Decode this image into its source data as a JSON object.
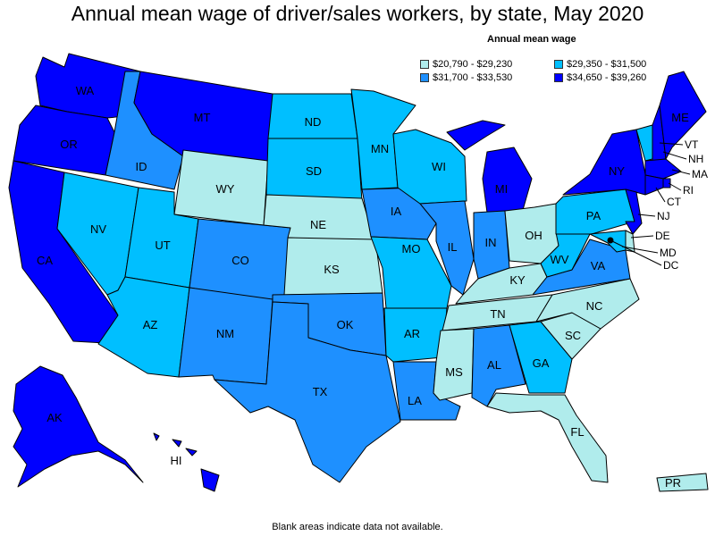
{
  "title": "Annual mean wage of driver/sales workers, by state, May 2020",
  "legend": {
    "title": "Annual mean wage",
    "items": [
      {
        "label": "$20,790 - $29,230",
        "color": "#b0ecec"
      },
      {
        "label": "$29,350 - $31,500",
        "color": "#00bfff"
      },
      {
        "label": "$31,700 - $33,530",
        "color": "#1e90ff"
      },
      {
        "label": "$34,650 - $39,260",
        "color": "#0000ff"
      }
    ]
  },
  "footnote": "Blank areas indicate data not available.",
  "states": {
    "WA": {
      "label": "WA",
      "class": 4
    },
    "OR": {
      "label": "OR",
      "class": 4
    },
    "CA": {
      "label": "CA",
      "class": 4
    },
    "NV": {
      "label": "NV",
      "class": 2
    },
    "ID": {
      "label": "ID",
      "class": 3
    },
    "MT": {
      "label": "MT",
      "class": 4
    },
    "WY": {
      "label": "WY",
      "class": 1
    },
    "UT": {
      "label": "UT",
      "class": 2
    },
    "AZ": {
      "label": "AZ",
      "class": 2
    },
    "CO": {
      "label": "CO",
      "class": 3
    },
    "NM": {
      "label": "NM",
      "class": 3
    },
    "ND": {
      "label": "ND",
      "class": 2
    },
    "SD": {
      "label": "SD",
      "class": 2
    },
    "NE": {
      "label": "NE",
      "class": 1
    },
    "KS": {
      "label": "KS",
      "class": 1
    },
    "OK": {
      "label": "OK",
      "class": 3
    },
    "TX": {
      "label": "TX",
      "class": 3
    },
    "MN": {
      "label": "MN",
      "class": 2
    },
    "IA": {
      "label": "IA",
      "class": 3
    },
    "MO": {
      "label": "MO",
      "class": 2
    },
    "AR": {
      "label": "AR",
      "class": 2
    },
    "LA": {
      "label": "LA",
      "class": 3
    },
    "WI": {
      "label": "WI",
      "class": 2
    },
    "IL": {
      "label": "IL",
      "class": 3
    },
    "MI": {
      "label": "MI",
      "class": 4
    },
    "IN": {
      "label": "IN",
      "class": 3
    },
    "OH": {
      "label": "OH",
      "class": 1
    },
    "KY": {
      "label": "KY",
      "class": 1
    },
    "TN": {
      "label": "TN",
      "class": 1
    },
    "MS": {
      "label": "MS",
      "class": 1
    },
    "AL": {
      "label": "AL",
      "class": 3
    },
    "GA": {
      "label": "GA",
      "class": 2
    },
    "FL": {
      "label": "FL",
      "class": 1
    },
    "SC": {
      "label": "SC",
      "class": 1
    },
    "NC": {
      "label": "NC",
      "class": 1
    },
    "VA": {
      "label": "VA",
      "class": 3
    },
    "WV": {
      "label": "WV",
      "class": 2
    },
    "PA": {
      "label": "PA",
      "class": 2
    },
    "NY": {
      "label": "NY",
      "class": 4
    },
    "VT": {
      "label": "VT",
      "class": 2
    },
    "NH": {
      "label": "NH",
      "class": 4
    },
    "ME": {
      "label": "ME",
      "class": 4
    },
    "MA": {
      "label": "MA",
      "class": 4
    },
    "RI": {
      "label": "RI",
      "class": 4
    },
    "CT": {
      "label": "CT",
      "class": 4
    },
    "NJ": {
      "label": "NJ",
      "class": 4
    },
    "DE": {
      "label": "DE",
      "class": 1
    },
    "MD": {
      "label": "MD",
      "class": 2
    },
    "DC": {
      "label": "DC",
      "class": 4
    },
    "AK": {
      "label": "AK",
      "class": 4
    },
    "HI": {
      "label": "HI",
      "class": 4
    },
    "PR": {
      "label": "PR",
      "class": 1
    }
  }
}
